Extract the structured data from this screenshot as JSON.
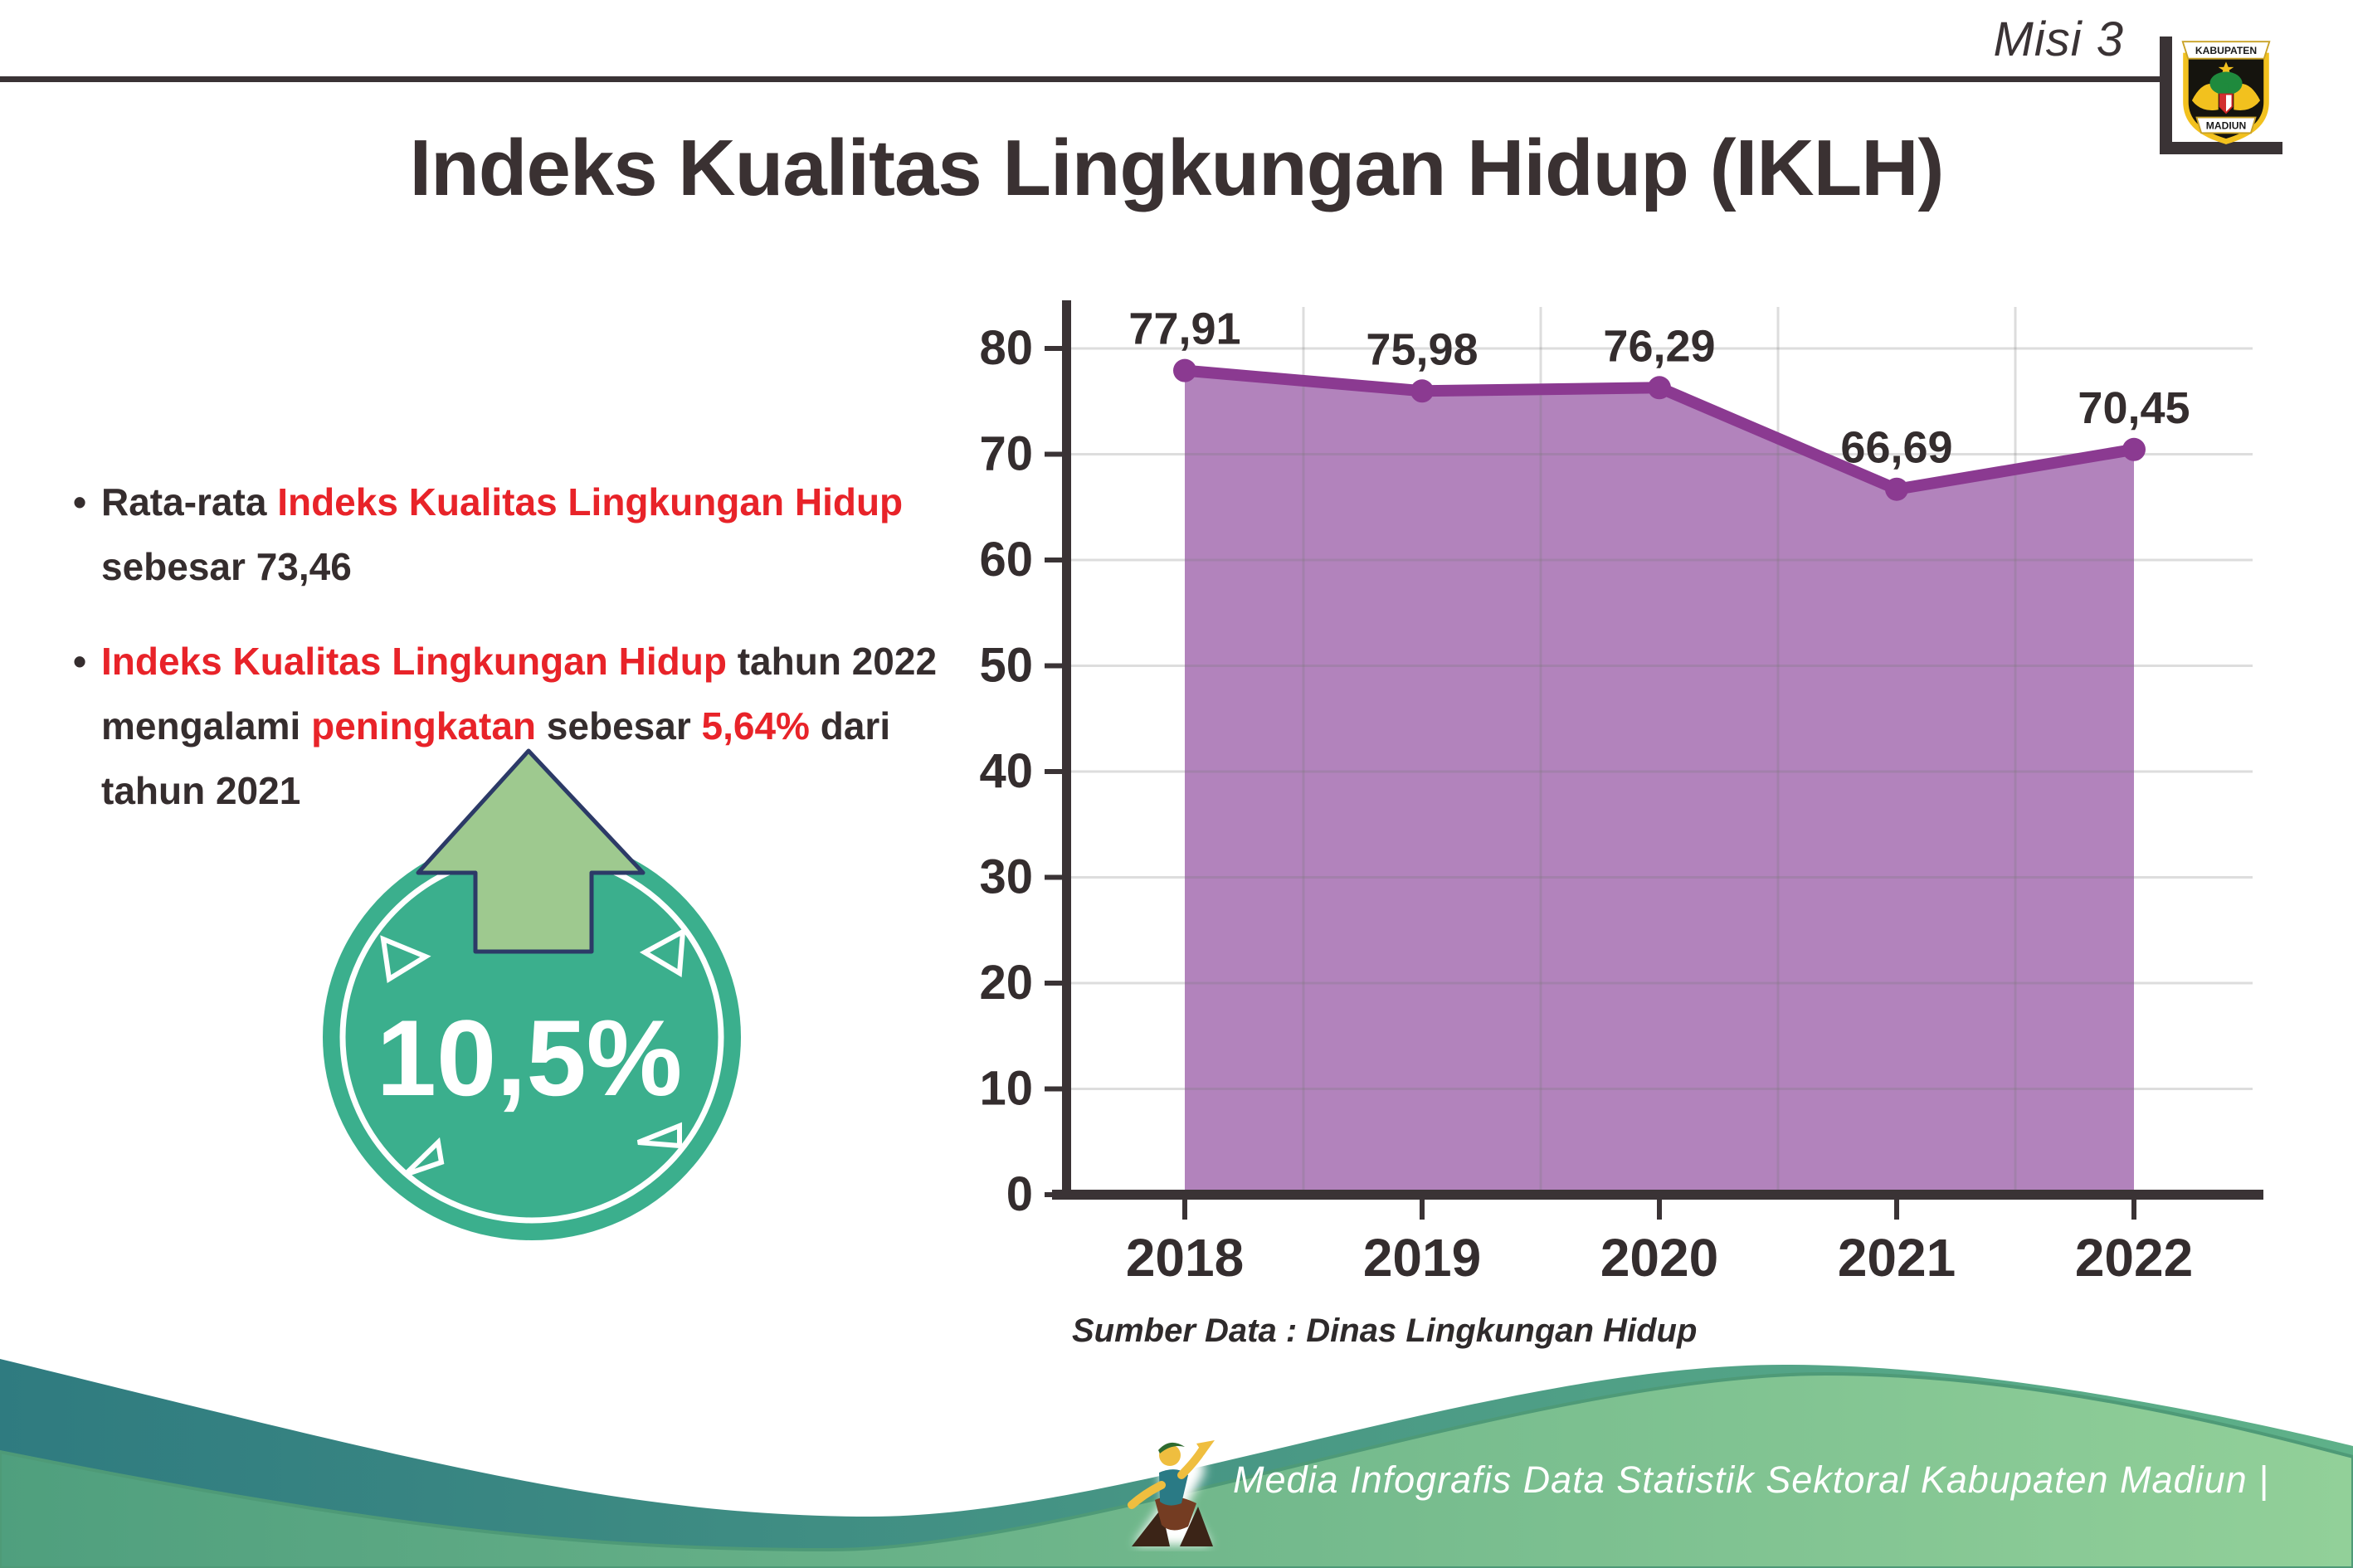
{
  "header": {
    "misi_label": "Misi 3",
    "logo": {
      "name": "kabupaten-madiun-logo",
      "top_text": "KABUPATEN",
      "bottom_text": "MADIUN"
    }
  },
  "title": "Indeks Kualitas Lingkungan Hidup (IKLH)",
  "bullets": [
    {
      "segments": [
        {
          "text": "Rata-rata ",
          "color": "dark"
        },
        {
          "text": "Indeks Kualitas Lingkungan Hidup",
          "color": "red"
        },
        {
          "text": "\nsebesar 73,46",
          "color": "dark"
        }
      ]
    },
    {
      "segments": [
        {
          "text": "Indeks Kualitas Lingkungan Hidup",
          "color": "red"
        },
        {
          "text": " tahun 2022\nmengalami ",
          "color": "dark"
        },
        {
          "text": "peningkatan",
          "color": "red"
        },
        {
          "text": " sebesar ",
          "color": "dark"
        },
        {
          "text": "5,64%",
          "color": "red"
        },
        {
          "text": " dari\ntahun 2021",
          "color": "dark"
        }
      ]
    }
  ],
  "badge": {
    "value": "10,5%",
    "icon": "up-arrow-icon"
  },
  "chart_data": {
    "type": "area",
    "categories": [
      "2018",
      "2019",
      "2020",
      "2021",
      "2022"
    ],
    "values": [
      77.91,
      75.98,
      76.29,
      66.69,
      70.45
    ],
    "value_labels": [
      "77,91",
      "75,98",
      "76,29",
      "66,69",
      "70,45"
    ],
    "title": "",
    "xlabel": "",
    "ylabel": "",
    "ylim": [
      0,
      84
    ],
    "yticks": [
      0,
      10,
      20,
      30,
      40,
      50,
      60,
      70,
      80
    ],
    "grid": true,
    "legend": false,
    "source": "Sumber Data : Dinas Lingkungan Hidup"
  },
  "footer": {
    "text": "Media Infografis Data Statistik Sektoral Kabupaten Madiun |",
    "icon": "dancer-mascot-icon"
  },
  "colors": {
    "text_dark": "#352d2e",
    "accent_red": "#e82329",
    "line": "#8b3a91",
    "area_fill": "#b283bc",
    "marker": "#8b3a91",
    "grid": "rgba(120,120,120,0.25)",
    "axis": "#3a3335",
    "label": "#342d2e",
    "badge_teal": "#3baf8d",
    "arrow_green": "#9ec98f",
    "arrow_outline": "#2c3a67",
    "wave_teal_left": "#2f7b80",
    "wave_teal_right": "#5fb189",
    "wave_green_left": "#4f9f7e",
    "wave_green_right": "#92d099",
    "footer_text": "#ffffff"
  }
}
